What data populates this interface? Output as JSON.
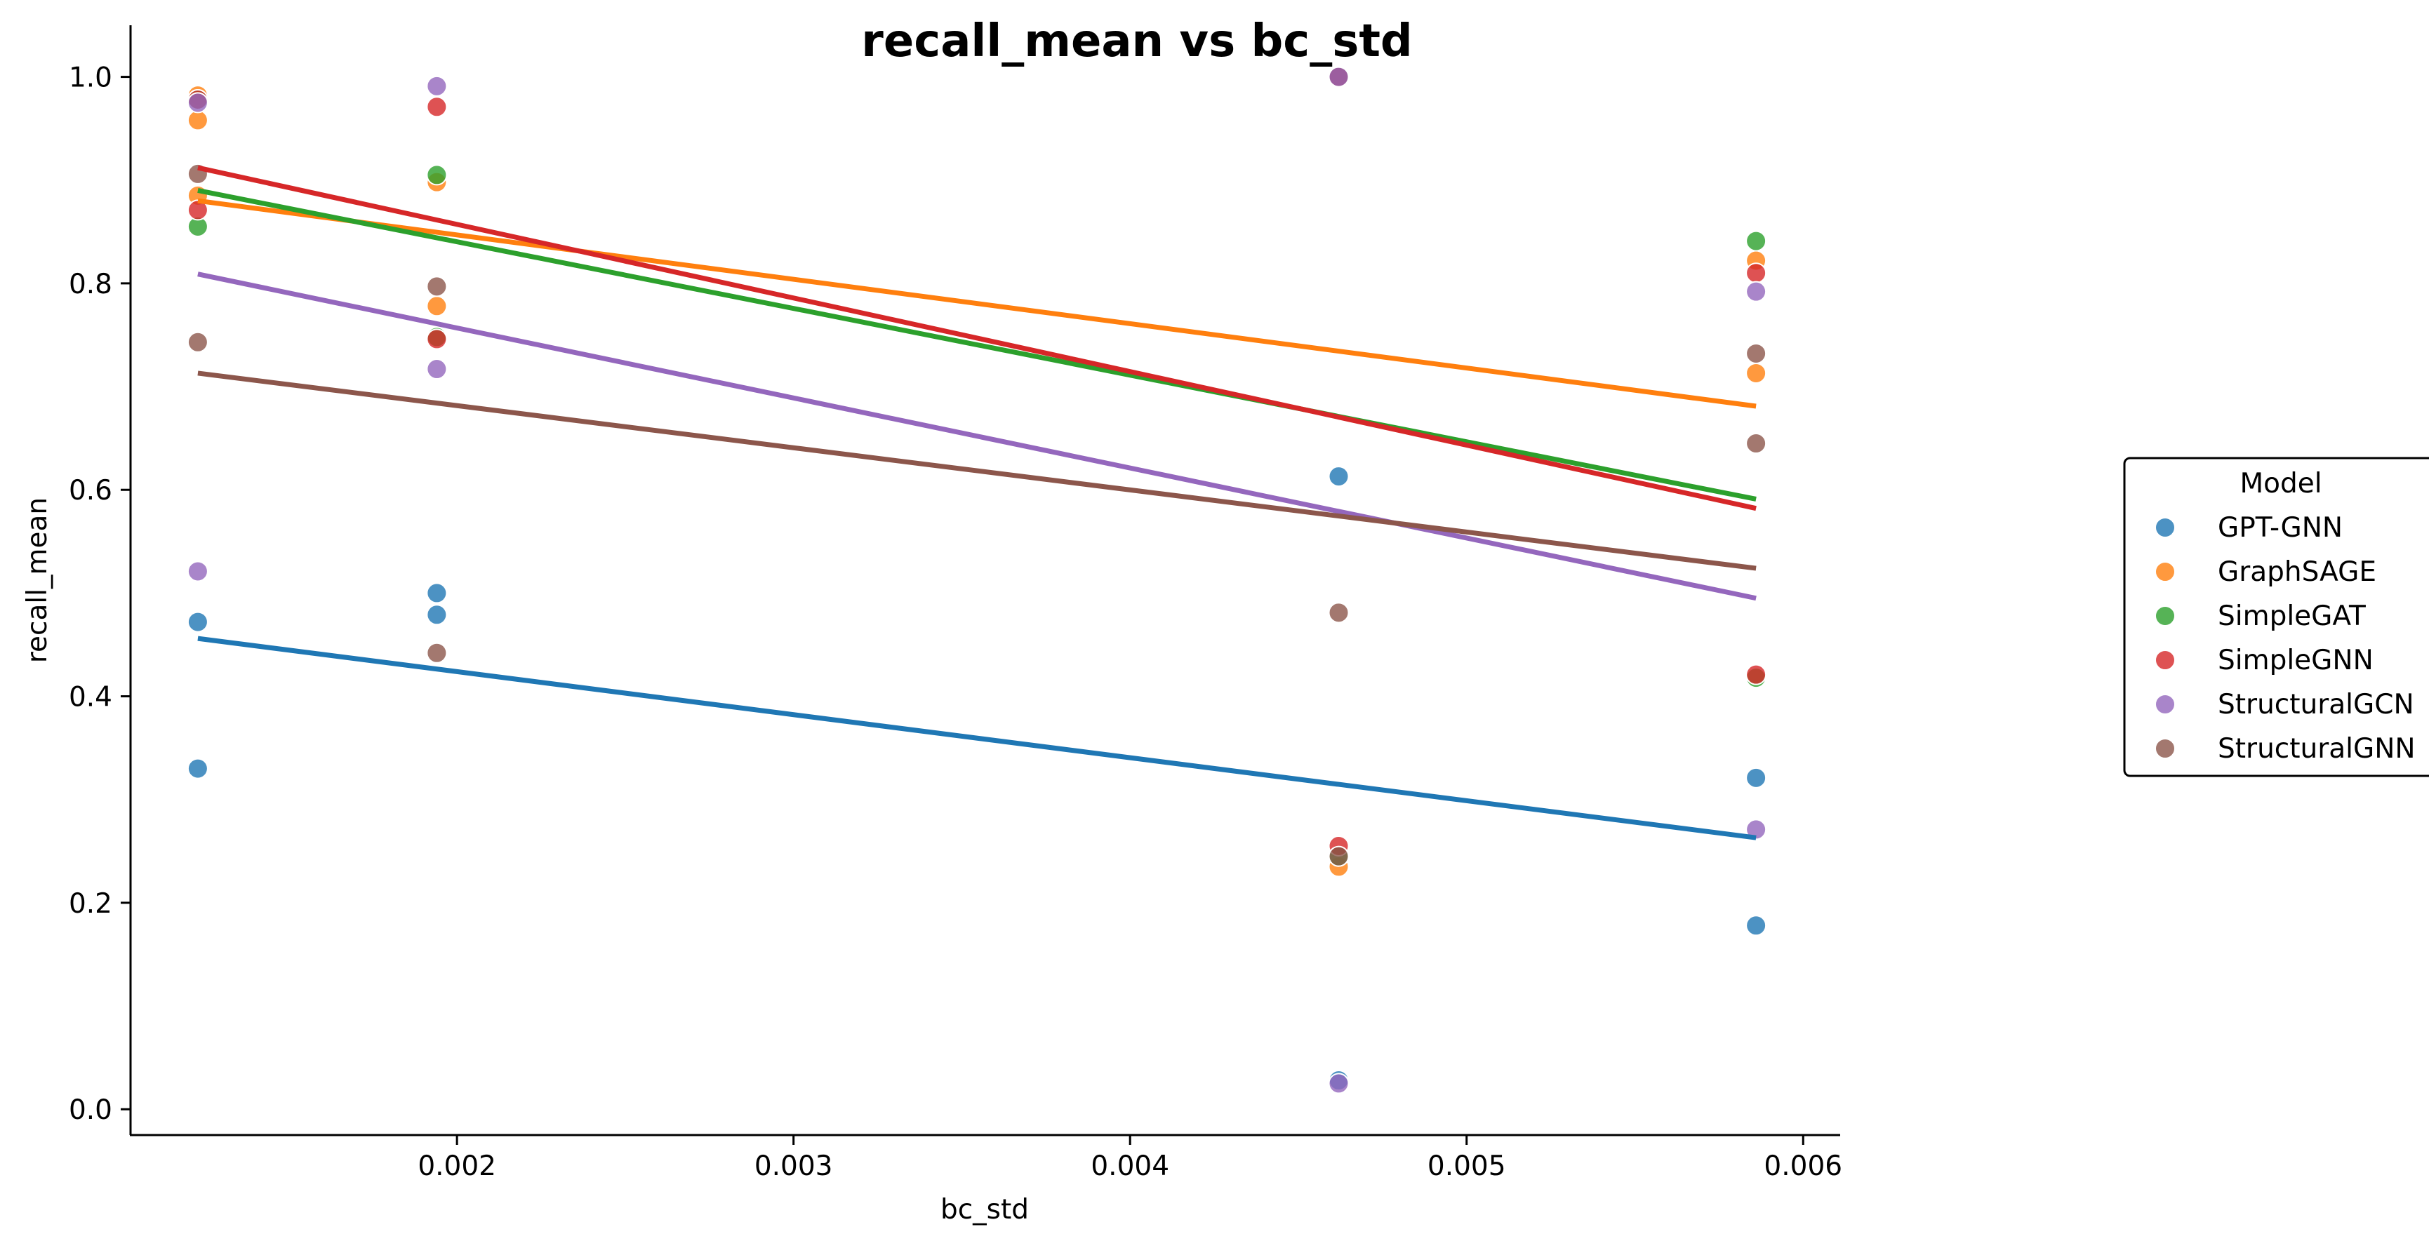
{
  "chart_data": {
    "type": "scatter",
    "title": "recall_mean vs bc_std",
    "xlabel": "bc_std",
    "ylabel": "recall_mean",
    "xlim": [
      0.00103,
      0.00611
    ],
    "ylim": [
      -0.025,
      1.05
    ],
    "xticks": [
      0.002,
      0.003,
      0.004,
      0.005,
      0.006
    ],
    "xtick_labels": [
      "0.002",
      "0.003",
      "0.004",
      "0.005",
      "0.006"
    ],
    "yticks": [
      0.0,
      0.2,
      0.4,
      0.6,
      0.8,
      1.0
    ],
    "ytick_labels": [
      "0.0",
      "0.2",
      "0.4",
      "0.6",
      "0.8",
      "1.0"
    ],
    "grid": false,
    "legend": {
      "title": "Model",
      "placement": "center-right-outside"
    },
    "series": [
      {
        "name": "GPT-GNN",
        "color": "#1f77b4",
        "points": [
          [
            0.00123,
            0.472
          ],
          [
            0.00123,
            0.33
          ],
          [
            0.00194,
            0.5
          ],
          [
            0.00194,
            0.479
          ],
          [
            0.00462,
            0.613
          ],
          [
            0.00462,
            0.028
          ],
          [
            0.00586,
            0.321
          ],
          [
            0.00586,
            0.178
          ]
        ],
        "trend": [
          [
            0.00123,
            0.456
          ],
          [
            0.00586,
            0.263
          ]
        ]
      },
      {
        "name": "GraphSAGE",
        "color": "#ff7f0e",
        "points": [
          [
            0.00123,
            0.982
          ],
          [
            0.00123,
            0.958
          ],
          [
            0.00123,
            0.885
          ],
          [
            0.00194,
            0.898
          ],
          [
            0.00194,
            0.778
          ],
          [
            0.00462,
            1.0
          ],
          [
            0.00462,
            0.235
          ],
          [
            0.00586,
            0.822
          ],
          [
            0.00586,
            0.713
          ]
        ],
        "trend": [
          [
            0.00123,
            0.88
          ],
          [
            0.00586,
            0.681
          ]
        ]
      },
      {
        "name": "SimpleGAT",
        "color": "#2ca02c",
        "points": [
          [
            0.00123,
            0.978
          ],
          [
            0.00123,
            0.855
          ],
          [
            0.00194,
            0.905
          ],
          [
            0.00194,
            0.748
          ],
          [
            0.00462,
            1.0
          ],
          [
            0.00462,
            0.245
          ],
          [
            0.00586,
            0.841
          ],
          [
            0.00586,
            0.418
          ]
        ],
        "trend": [
          [
            0.00123,
            0.89
          ],
          [
            0.00586,
            0.591
          ]
        ]
      },
      {
        "name": "SimpleGNN",
        "color": "#d62728",
        "points": [
          [
            0.00123,
            0.978
          ],
          [
            0.00123,
            0.871
          ],
          [
            0.00194,
            0.971
          ],
          [
            0.00194,
            0.746
          ],
          [
            0.00462,
            1.0
          ],
          [
            0.00462,
            0.255
          ],
          [
            0.00586,
            0.81
          ],
          [
            0.00586,
            0.421
          ]
        ],
        "trend": [
          [
            0.00123,
            0.912
          ],
          [
            0.00586,
            0.582
          ]
        ]
      },
      {
        "name": "StructuralGCN",
        "color": "#9467bd",
        "points": [
          [
            0.00123,
            0.975
          ],
          [
            0.00123,
            0.521
          ],
          [
            0.00194,
            0.991
          ],
          [
            0.00194,
            0.717
          ],
          [
            0.00462,
            1.0
          ],
          [
            0.00462,
            0.025
          ],
          [
            0.00586,
            0.792
          ],
          [
            0.00586,
            0.271
          ]
        ],
        "trend": [
          [
            0.00123,
            0.809
          ],
          [
            0.00586,
            0.495
          ]
        ]
      },
      {
        "name": "StructuralGNN",
        "color": "#8c564b",
        "points": [
          [
            0.00123,
            0.906
          ],
          [
            0.00123,
            0.743
          ],
          [
            0.00194,
            0.797
          ],
          [
            0.00194,
            0.442
          ],
          [
            0.00462,
            0.481
          ],
          [
            0.00462,
            0.245
          ],
          [
            0.00586,
            0.732
          ],
          [
            0.00586,
            0.645
          ]
        ],
        "trend": [
          [
            0.00123,
            0.713
          ],
          [
            0.00586,
            0.524
          ]
        ]
      }
    ]
  }
}
